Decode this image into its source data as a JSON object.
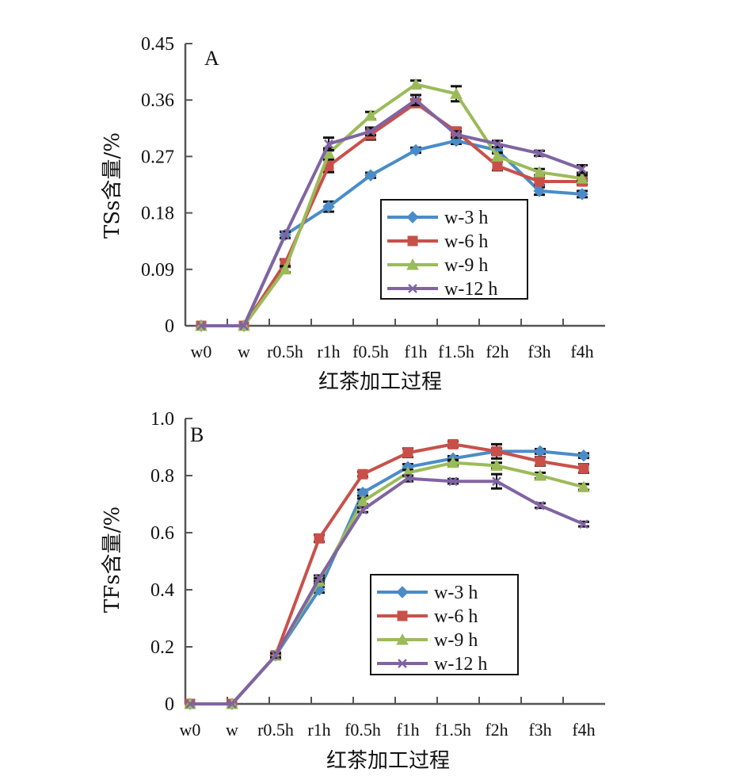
{
  "chart_data": [
    {
      "type": "line",
      "panel_label": "A",
      "ylabel": "TSs含量/%",
      "xlabel": "红茶加工过程",
      "categories": [
        "w0",
        "w",
        "r0.5h",
        "r1h",
        "f0.5h",
        "f1h",
        "f1.5h",
        "f2h",
        "f3h",
        "f4h"
      ],
      "ylim": [
        0,
        0.45
      ],
      "yticks": [
        "0",
        "0.09",
        "0.18",
        "0.27",
        "0.36",
        "0.45"
      ],
      "legend_position": "center-right",
      "series": [
        {
          "name": "w-3 h",
          "color": "#4a8cc8",
          "marker": "diamond",
          "values": [
            0,
            0,
            0.145,
            0.19,
            0.24,
            0.28,
            0.295,
            0.28,
            0.215,
            0.21
          ],
          "errors": [
            0,
            0,
            0.005,
            0.008,
            0.004,
            0.004,
            0.005,
            0.005,
            0.006,
            0.005
          ]
        },
        {
          "name": "w-6 h",
          "color": "#c9504a",
          "marker": "square",
          "values": [
            0,
            0,
            0.1,
            0.255,
            0.305,
            0.355,
            0.31,
            0.255,
            0.23,
            0.23
          ],
          "errors": [
            0,
            0,
            0.006,
            0.01,
            0.008,
            0.006,
            0.005,
            0.007,
            0.006,
            0.005
          ]
        },
        {
          "name": "w-9 h",
          "color": "#9bbb59",
          "marker": "triangle",
          "values": [
            0,
            0,
            0.09,
            0.275,
            0.335,
            0.385,
            0.37,
            0.27,
            0.245,
            0.235
          ],
          "errors": [
            0,
            0,
            0.005,
            0.008,
            0.006,
            0.006,
            0.012,
            0.006,
            0.005,
            0.005
          ]
        },
        {
          "name": "w-12 h",
          "color": "#8064a2",
          "marker": "x",
          "values": [
            0,
            0,
            0.145,
            0.29,
            0.31,
            0.36,
            0.305,
            0.29,
            0.275,
            0.25
          ],
          "errors": [
            0,
            0,
            0.005,
            0.01,
            0.006,
            0.008,
            0.005,
            0.005,
            0.004,
            0.006
          ]
        }
      ]
    },
    {
      "type": "line",
      "panel_label": "B",
      "ylabel": "TFs含量/%",
      "xlabel": "红茶加工过程",
      "categories": [
        "w0",
        "w",
        "r0.5h",
        "r1h",
        "f0.5h",
        "f1h",
        "f1.5h",
        "f2h",
        "f3h",
        "f4h"
      ],
      "ylim": [
        0,
        1.0
      ],
      "yticks": [
        "0",
        "0.2",
        "0.4",
        "0.6",
        "0.8",
        "1.0"
      ],
      "legend_position": "lower-right",
      "series": [
        {
          "name": "w-3 h",
          "color": "#4a8cc8",
          "marker": "diamond",
          "values": [
            0,
            0,
            0.17,
            0.4,
            0.74,
            0.83,
            0.86,
            0.885,
            0.885,
            0.87
          ],
          "errors": [
            0,
            0,
            0.008,
            0.01,
            0.01,
            0.01,
            0.008,
            0.01,
            0.008,
            0.008
          ]
        },
        {
          "name": "w-6 h",
          "color": "#c9504a",
          "marker": "square",
          "values": [
            0,
            0,
            0.17,
            0.58,
            0.805,
            0.88,
            0.91,
            0.885,
            0.85,
            0.825
          ],
          "errors": [
            0,
            0,
            0.008,
            0.012,
            0.008,
            0.015,
            0.01,
            0.025,
            0.015,
            0.015
          ]
        },
        {
          "name": "w-9 h",
          "color": "#9bbb59",
          "marker": "triangle",
          "values": [
            0,
            0,
            0.17,
            0.43,
            0.71,
            0.81,
            0.845,
            0.835,
            0.8,
            0.76
          ],
          "errors": [
            0,
            0,
            0.008,
            0.01,
            0.01,
            0.01,
            0.01,
            0.01,
            0.01,
            0.01
          ]
        },
        {
          "name": "w-12 h",
          "color": "#8064a2",
          "marker": "x",
          "values": [
            0,
            0,
            0.17,
            0.44,
            0.68,
            0.79,
            0.78,
            0.78,
            0.695,
            0.63
          ],
          "errors": [
            0,
            0,
            0.008,
            0.01,
            0.008,
            0.01,
            0.008,
            0.025,
            0.008,
            0.008
          ]
        }
      ]
    }
  ]
}
